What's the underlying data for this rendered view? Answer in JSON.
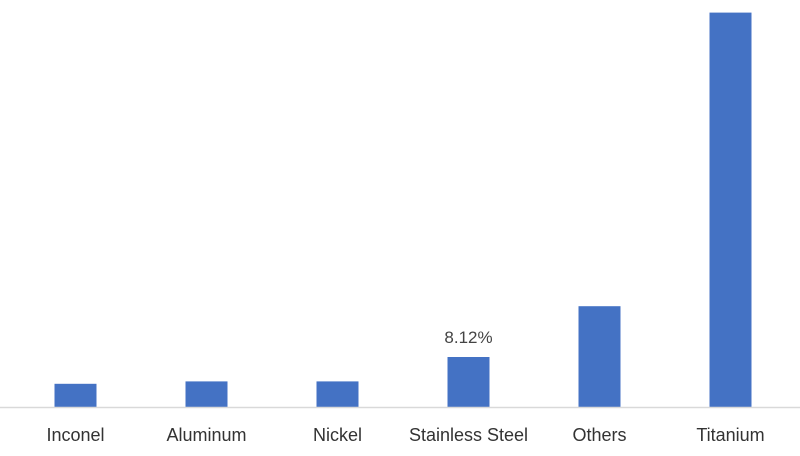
{
  "chart_data": {
    "type": "bar",
    "categories": [
      "Inconel",
      "Aluminum",
      "Nickel",
      "Stainless Steel",
      "Others",
      "Titanium"
    ],
    "values": [
      5.8,
      6.4,
      6.4,
      12.5,
      25.2,
      98.6
    ],
    "data_labels": [
      "",
      "",
      "",
      "8.12%",
      "",
      ""
    ],
    "title": "",
    "xlabel": "",
    "ylabel": "",
    "ylim": [
      0,
      100
    ],
    "grid": false,
    "legend": "none",
    "bar_color": "#4472C4",
    "axis_color": "#d9d9d9"
  }
}
